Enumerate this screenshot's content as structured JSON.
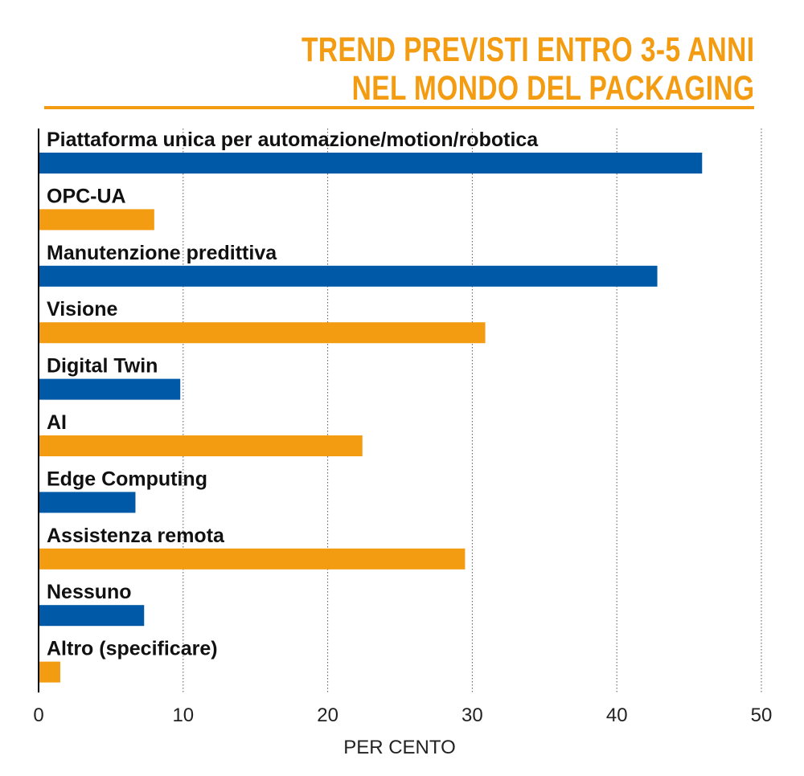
{
  "title": {
    "line1": "TREND PREVISTI ENTRO 3-5 ANNI",
    "line2": "NEL MONDO DEL PACKAGING"
  },
  "chart_data": {
    "type": "bar",
    "orientation": "horizontal",
    "title": "TREND PREVISTI ENTRO 3-5 ANNI NEL MONDO DEL PACKAGING",
    "xlabel": "PER CENTO",
    "ylabel": "",
    "xlim": [
      0,
      50
    ],
    "xticks": [
      0,
      10,
      20,
      30,
      40,
      50
    ],
    "grid": "vertical dotted",
    "categories": [
      "Piattaforma unica per automazione/motion/robotica",
      "OPC-UA",
      "Manutenzione predittiva",
      "Visione",
      "Digital Twin",
      "AI",
      "Edge Computing",
      "Assistenza remota",
      "Nessuno",
      "Altro (specificare)"
    ],
    "values": [
      45.9,
      8.0,
      42.8,
      30.9,
      9.8,
      22.4,
      6.7,
      29.5,
      7.3,
      1.5
    ],
    "colors": [
      "#0059A6",
      "#F39C12",
      "#0059A6",
      "#F39C12",
      "#0059A6",
      "#F39C12",
      "#0059A6",
      "#F39C12",
      "#0059A6",
      "#F39C12"
    ]
  }
}
